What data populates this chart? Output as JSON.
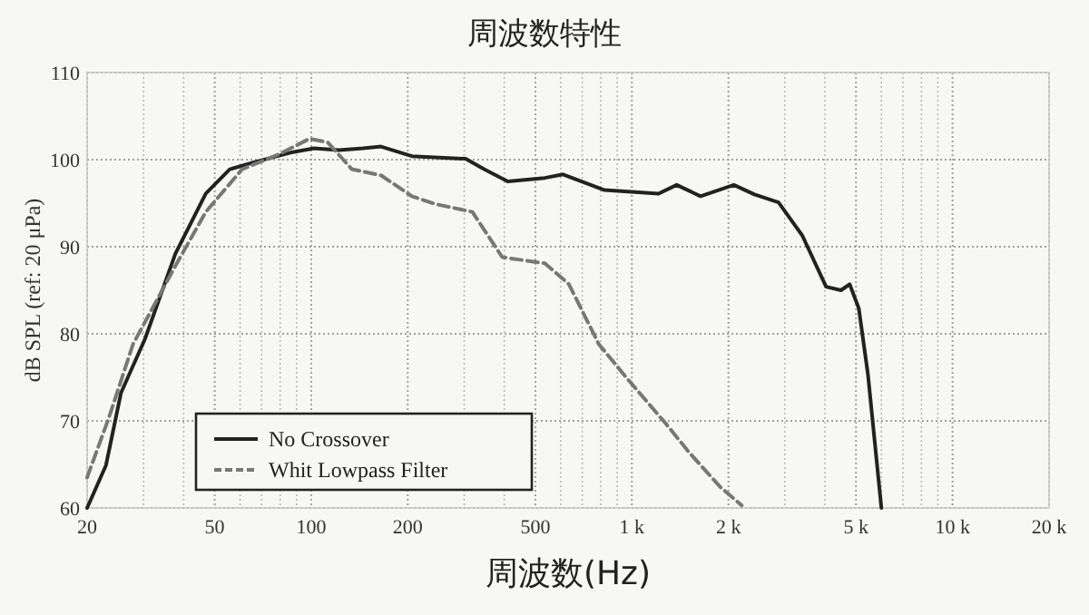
{
  "chart_data": {
    "type": "line",
    "title": "周波数特性",
    "xlabel": "周波数(Hz)",
    "ylabel": "dB SPL (ref: 20 μPa)",
    "log": "x",
    "grid": true,
    "legend": "bottom left",
    "marker": "none",
    "xlim": [
      20,
      20000
    ],
    "ylim": [
      60,
      110
    ],
    "xticks": [
      20,
      50,
      100,
      200,
      500,
      {
        "value": 1000,
        "label": "1 k"
      },
      {
        "value": 2000,
        "label": "2 k"
      },
      {
        "value": 5000,
        "label": "5 k"
      },
      {
        "value": 10000,
        "label": "10 k"
      },
      {
        "value": 20000,
        "label": "20 k"
      }
    ],
    "yticks": [
      60,
      70,
      80,
      90,
      100,
      110
    ],
    "series": [
      {
        "name": "No Crossover",
        "color": "#222222",
        "line_style": "solid",
        "x": [
          20,
          22.9,
          25.5,
          30.3,
          37.7,
          46.9,
          55.7,
          66.3,
          86.1,
          102,
          122,
          145,
          165,
          206,
          303,
          346,
          410,
          535,
          610,
          822,
          1211,
          1379,
          1637,
          2079,
          2412,
          2866,
          3398,
          4034,
          4488,
          4776,
          5102,
          5449,
          6000
        ],
        "values": [
          60,
          64.9,
          73.2,
          79.4,
          89.2,
          96.1,
          98.9,
          99.7,
          100.8,
          101.3,
          101.1,
          101.3,
          101.5,
          100.4,
          100.1,
          98.9,
          97.5,
          97.9,
          98.3,
          96.5,
          96.1,
          97.1,
          95.8,
          97.1,
          96,
          95.1,
          91.3,
          85.4,
          85,
          85.7,
          82.9,
          75.3,
          60
        ]
      },
      {
        "name": "Whit Lowpass Filter",
        "color": "#777777",
        "line_style": "dashed",
        "x": [
          20,
          23.4,
          27.8,
          37.7,
          46.9,
          60.9,
          79.2,
          98.7,
          112.5,
          133.8,
          165,
          206,
          244,
          318,
          394,
          535,
          636,
          789,
          980,
          1275,
          1515,
          1887,
          2200
        ],
        "values": [
          63.5,
          70.4,
          78.8,
          87.8,
          94,
          98.9,
          100.6,
          102.4,
          102,
          98.9,
          98.2,
          95.8,
          94.9,
          94,
          88.8,
          88.1,
          85.7,
          78.8,
          74.6,
          69.7,
          66.3,
          62.4,
          60.3
        ]
      }
    ]
  }
}
